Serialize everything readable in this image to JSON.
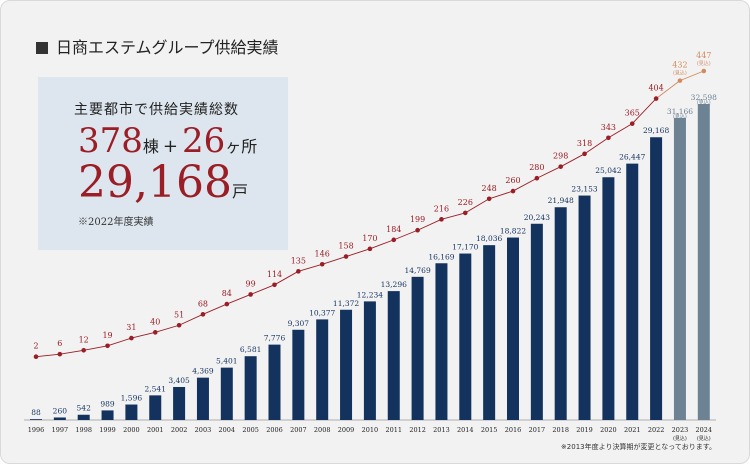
{
  "title": "日商エステムグループ供給実績",
  "summary": {
    "lead": "主要都市で供給実績総数",
    "buildings": "378",
    "buildings_unit": "棟",
    "plus": "+",
    "sites": "26",
    "sites_unit": "ヶ所",
    "units": "29,168",
    "units_unit": "戸",
    "note": "※2022年度実績"
  },
  "footnote": "※2013年度より決算期が変更となっております。",
  "chart_data": {
    "type": "bar",
    "categories": [
      "1996",
      "1997",
      "1998",
      "1999",
      "2000",
      "2001",
      "2002",
      "2003",
      "2004",
      "2005",
      "2006",
      "2007",
      "2008",
      "2009",
      "2010",
      "2011",
      "2012",
      "2013",
      "2014",
      "2015",
      "2016",
      "2017",
      "2018",
      "2019",
      "2020",
      "2021",
      "2022",
      "2023",
      "2024"
    ],
    "forecast_label": "(見込)",
    "series": [
      {
        "kind": "bar",
        "values": [
          88,
          260,
          542,
          989,
          1596,
          2541,
          3405,
          4369,
          5401,
          6581,
          7776,
          9307,
          10377,
          11372,
          12234,
          13296,
          14769,
          16169,
          17170,
          18036,
          18822,
          20243,
          21948,
          23153,
          25042,
          26447,
          29168,
          31166,
          32598
        ],
        "labels": [
          "88",
          "260",
          "542",
          "989",
          "1,596",
          "2,541",
          "3,405",
          "4,369",
          "5,401",
          "6,581",
          "7,776",
          "9,307",
          "10,377",
          "11,372",
          "12,234",
          "13,296",
          "14,769",
          "16,169",
          "17,170",
          "18,036",
          "18,822",
          "20,243",
          "21,948",
          "23,153",
          "25,042",
          "26,447",
          "29,168",
          "31,166",
          "32,598"
        ],
        "color": "#13325e",
        "forecast_color": "#6d8293"
      },
      {
        "kind": "line",
        "values": [
          2,
          6,
          12,
          19,
          31,
          40,
          51,
          68,
          84,
          99,
          114,
          135,
          146,
          158,
          170,
          184,
          199,
          216,
          226,
          248,
          260,
          280,
          298,
          318,
          343,
          365,
          404,
          432,
          447
        ],
        "color": "#9b1d25",
        "forecast_color": "#d28a5f"
      }
    ],
    "forecast_from_index": 27
  }
}
